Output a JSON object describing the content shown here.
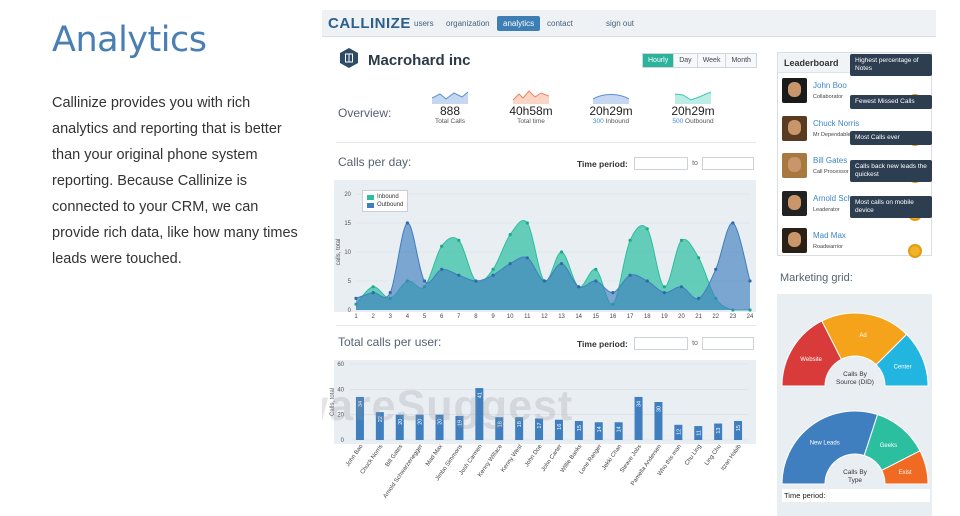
{
  "page": {
    "heading": "Analytics",
    "description": "Callinize provides you with rich analytics and reporting that is better than your original phone system reporting. Because Callinize is connected to your CRM, we can provide rich data, like how many times leads were touched."
  },
  "app": {
    "logo": "CALLINIZE",
    "nav": [
      "users",
      "organization",
      "analytics",
      "contact",
      "sign out"
    ],
    "active_nav": "analytics"
  },
  "company": {
    "name": "Macrohard inc",
    "icon": "building-icon"
  },
  "period_tabs": {
    "items": [
      "Hourly",
      "Day",
      "Week",
      "Month"
    ],
    "active": "Hourly"
  },
  "overview": {
    "title": "Overview:",
    "items": [
      {
        "value": "888",
        "label": "Total Calls",
        "spark_color": "#5b8fd6"
      },
      {
        "value": "40h58m",
        "label": "Total time",
        "spark_color": "#f0845a"
      },
      {
        "value": "20h29m",
        "label_hl": "300",
        "label": "Inbound",
        "spark_color": "#5b8fd6"
      },
      {
        "value": "20h29m",
        "label_hl": "500",
        "label": "Outbound",
        "spark_color": "#3cc8b4"
      }
    ]
  },
  "calls_per_day": {
    "title": "Calls per day:",
    "time_period_label": "Time period:",
    "to_label": "to"
  },
  "total_calls": {
    "title": "Total calls per user:",
    "time_period_label": "Time period:",
    "to_label": "to"
  },
  "chart_data": [
    {
      "type": "area",
      "title": "Calls per day:",
      "ylabel": "calls, total",
      "x": [
        1,
        2,
        3,
        4,
        5,
        6,
        7,
        8,
        9,
        10,
        11,
        12,
        13,
        14,
        15,
        16,
        17,
        18,
        19,
        20,
        21,
        22,
        23,
        24
      ],
      "ylim": [
        0,
        20
      ],
      "yticks": [
        0,
        5,
        10,
        15,
        20
      ],
      "series": [
        {
          "name": "Inbound",
          "color": "#2bbf9f",
          "values": [
            1,
            4,
            2,
            5,
            4,
            11,
            12,
            5,
            7,
            13,
            15,
            5,
            10,
            4,
            7,
            1,
            12,
            14,
            4,
            12,
            9,
            2,
            0,
            0
          ]
        },
        {
          "name": "Outbound",
          "color": "#3f7fbf",
          "values": [
            2,
            3,
            3,
            15,
            5,
            7,
            6,
            5,
            6,
            8,
            9,
            5,
            8,
            4,
            5,
            3,
            6,
            5,
            3,
            4,
            2,
            7,
            15,
            5
          ]
        }
      ],
      "legend": "top-left"
    },
    {
      "type": "bar",
      "title": "Total calls per user:",
      "ylabel": "Calls, total",
      "ylim": [
        0,
        60
      ],
      "yticks": [
        0,
        20,
        40,
        60
      ],
      "categories": [
        "John Bao",
        "Chuck Norris",
        "Bill Gates",
        "Arnold Schwarzenegger",
        "Mad Max",
        "Jimbo Simmons",
        "Josh Carmen",
        "Kenny Willace",
        "Kenny West",
        "John Doe",
        "John Carter",
        "Willie Banks",
        "Lone Ranger",
        "Jekki Chan",
        "Steave Jobs",
        "Pamella Andersen",
        "Who this man",
        "Chu Ling",
        "Ling Chu",
        "Itzan Habib"
      ],
      "values": [
        34,
        22,
        20,
        20,
        20,
        19,
        41,
        18,
        18,
        17,
        16,
        15,
        14,
        14,
        34,
        30,
        12,
        11,
        13,
        15
      ],
      "color": "#3f7fbf"
    },
    {
      "type": "pie",
      "title": "Calls By Source (DID)",
      "slices": [
        {
          "label": "Website",
          "value": 35,
          "color": "#d93a3a"
        },
        {
          "label": "Ad",
          "value": 40,
          "color": "#f5a31a"
        },
        {
          "label": "Center",
          "value": 25,
          "color": "#21b5e0"
        }
      ]
    },
    {
      "type": "pie",
      "title": "Calls By Type",
      "slices": [
        {
          "label": "New Leads",
          "value": 60,
          "color": "#3f7fbf"
        },
        {
          "label": "Geeks",
          "value": 25,
          "color": "#2bbf9f"
        },
        {
          "label": "Exist",
          "value": 15,
          "color": "#f16a23"
        }
      ]
    }
  ],
  "leaderboard": {
    "title": "Leaderboard",
    "rows": [
      {
        "name": "John Boo",
        "role": "Collaborator"
      },
      {
        "name": "Chuck Norris",
        "role": "Mr Dependable"
      },
      {
        "name": "Bill Gates",
        "role": "Call Processor"
      },
      {
        "name": "Arnold Schwarzenegger",
        "role": "Leaderator"
      },
      {
        "name": "Mad Max",
        "role": "Roadwarrior"
      }
    ],
    "tips": [
      "Highest percentage of Notes",
      "Fewest Missed Calls",
      "Most Calls ever",
      "Calls back new leads the quickest",
      "Most calls on mobile device"
    ]
  },
  "marketing": {
    "title": "Marketing grid:",
    "time_period_label": "Time period:"
  },
  "watermark": "SoftwareSuggest"
}
